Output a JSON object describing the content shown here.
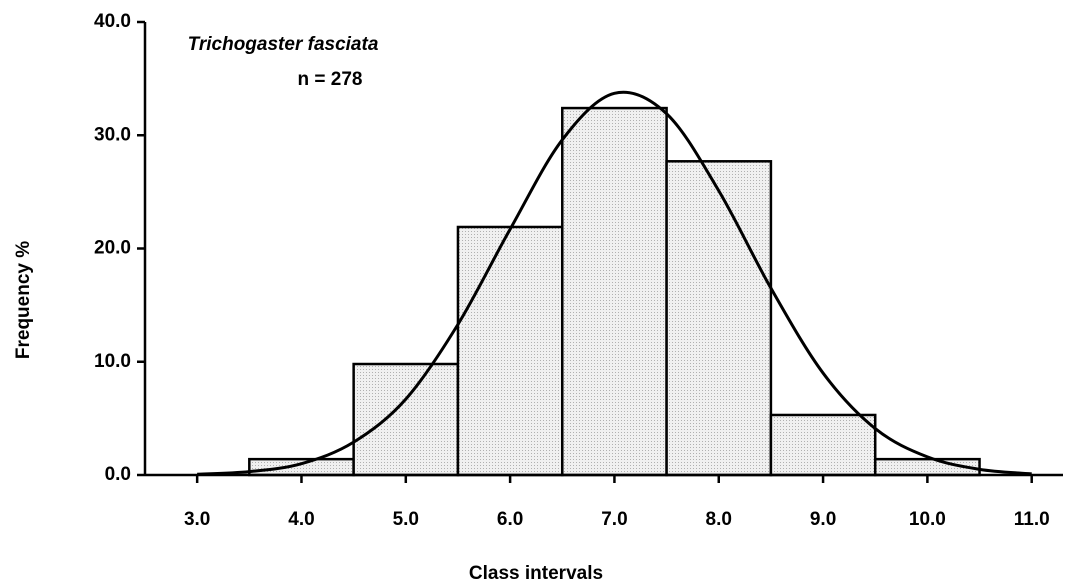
{
  "chart_data": {
    "type": "histogram",
    "annotations": [
      "Trichogaster fasciata",
      "n = 278"
    ],
    "xlabel": "Class intervals",
    "ylabel": "Frequency %",
    "bins": [
      3.5,
      4.5,
      5.5,
      6.5,
      7.5,
      8.5,
      9.5,
      10.5
    ],
    "values": [
      1.4,
      9.8,
      21.9,
      32.4,
      27.7,
      5.3,
      1.4
    ],
    "color": "#e4e4e4",
    "curve": {
      "color": "#000000",
      "x": [
        3,
        3.5,
        4,
        4.5,
        5,
        5.5,
        6,
        6.5,
        7,
        7.5,
        8,
        8.5,
        9,
        9.5,
        10,
        10.5,
        11
      ],
      "values": [
        0.07,
        0.3,
        1.0,
        2.9,
        6.7,
        13.3,
        21.7,
        29.6,
        33.7,
        31.9,
        25.1,
        16.5,
        9.0,
        4.1,
        1.6,
        0.5,
        0.1
      ]
    },
    "xlim": [
      2.5,
      11.3
    ],
    "xticks": [
      {
        "value": 3,
        "label": "3.0"
      },
      {
        "value": 4,
        "label": "4.0"
      },
      {
        "value": 5,
        "label": "5.0"
      },
      {
        "value": 6,
        "label": "6.0"
      },
      {
        "value": 7,
        "label": "7.0"
      },
      {
        "value": 8,
        "label": "8.0"
      },
      {
        "value": 9,
        "label": "9.0"
      },
      {
        "value": 10,
        "label": "10.0"
      },
      {
        "value": 11,
        "label": "11.0"
      }
    ],
    "ylim": [
      0,
      40
    ],
    "yticks": [
      {
        "value": 0,
        "label": "0.0"
      },
      {
        "value": 10,
        "label": "10.0"
      },
      {
        "value": 20,
        "label": "20.0"
      },
      {
        "value": 30,
        "label": "30.0"
      },
      {
        "value": 40,
        "label": "40.0"
      }
    ]
  }
}
